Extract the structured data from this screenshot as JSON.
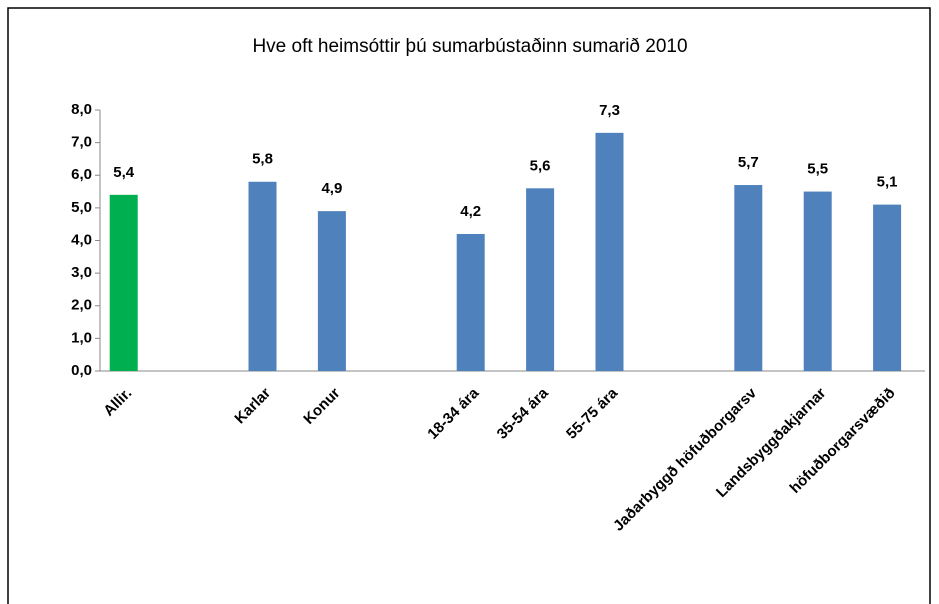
{
  "chart_data": {
    "type": "bar",
    "title": "Hve oft heimsóttir þú sumarbústaðinn sumarið 2010",
    "categories": [
      "Allir.",
      null,
      "Karlar",
      "Konur",
      null,
      "18-34 ára",
      "35-54 ára",
      "55-75 ára",
      null,
      "Jaðarbyggð höfuðborgarsv",
      "Landsbyggðakjarnar",
      "höfuðborgarsvæðið"
    ],
    "values": [
      5.4,
      null,
      5.8,
      4.9,
      null,
      4.2,
      5.6,
      7.3,
      null,
      5.7,
      5.5,
      5.1
    ],
    "value_labels": [
      "5,4",
      null,
      "5,8",
      "4,9",
      null,
      "4,2",
      "5,6",
      "7,3",
      null,
      "5,7",
      "5,5",
      "5,1"
    ],
    "colors": [
      "#00b050",
      null,
      "#4f81bd",
      "#4f81bd",
      null,
      "#4f81bd",
      "#4f81bd",
      "#4f81bd",
      null,
      "#4f81bd",
      "#4f81bd",
      "#4f81bd"
    ],
    "ylim": [
      0,
      8
    ],
    "yticks": [
      {
        "value": 0,
        "label": "0,0"
      },
      {
        "value": 1,
        "label": "1,0"
      },
      {
        "value": 2,
        "label": "2,0"
      },
      {
        "value": 3,
        "label": "3,0"
      },
      {
        "value": 4,
        "label": "4,0"
      },
      {
        "value": 5,
        "label": "5,0"
      },
      {
        "value": 6,
        "label": "6,0"
      },
      {
        "value": 7,
        "label": "7,0"
      },
      {
        "value": 8,
        "label": "8,0"
      }
    ],
    "grid": false
  }
}
